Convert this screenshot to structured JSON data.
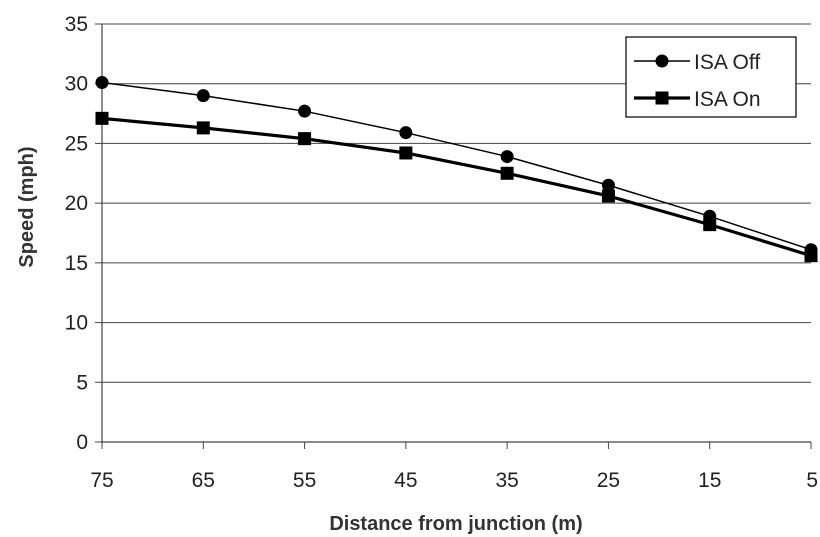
{
  "chart_data": {
    "type": "line",
    "title": "",
    "xlabel": "Distance from  junction (m)",
    "ylabel": "Speed (mph)",
    "categories": [
      "75",
      "65",
      "55",
      "45",
      "35",
      "25",
      "15",
      "5"
    ],
    "ylim": [
      0,
      35
    ],
    "yticks": [
      "0",
      "5",
      "10",
      "15",
      "20",
      "25",
      "30",
      "35"
    ],
    "grid": true,
    "legend_position": "top-right",
    "series": [
      {
        "name": "ISA Off",
        "marker": "circle",
        "color": "#000000",
        "values": [
          30.1,
          29.0,
          27.7,
          25.9,
          23.9,
          21.5,
          18.9,
          16.1
        ]
      },
      {
        "name": "ISA On",
        "marker": "square",
        "color": "#000000",
        "values": [
          27.1,
          26.3,
          25.4,
          24.2,
          22.5,
          20.6,
          18.2,
          15.6
        ]
      }
    ]
  }
}
